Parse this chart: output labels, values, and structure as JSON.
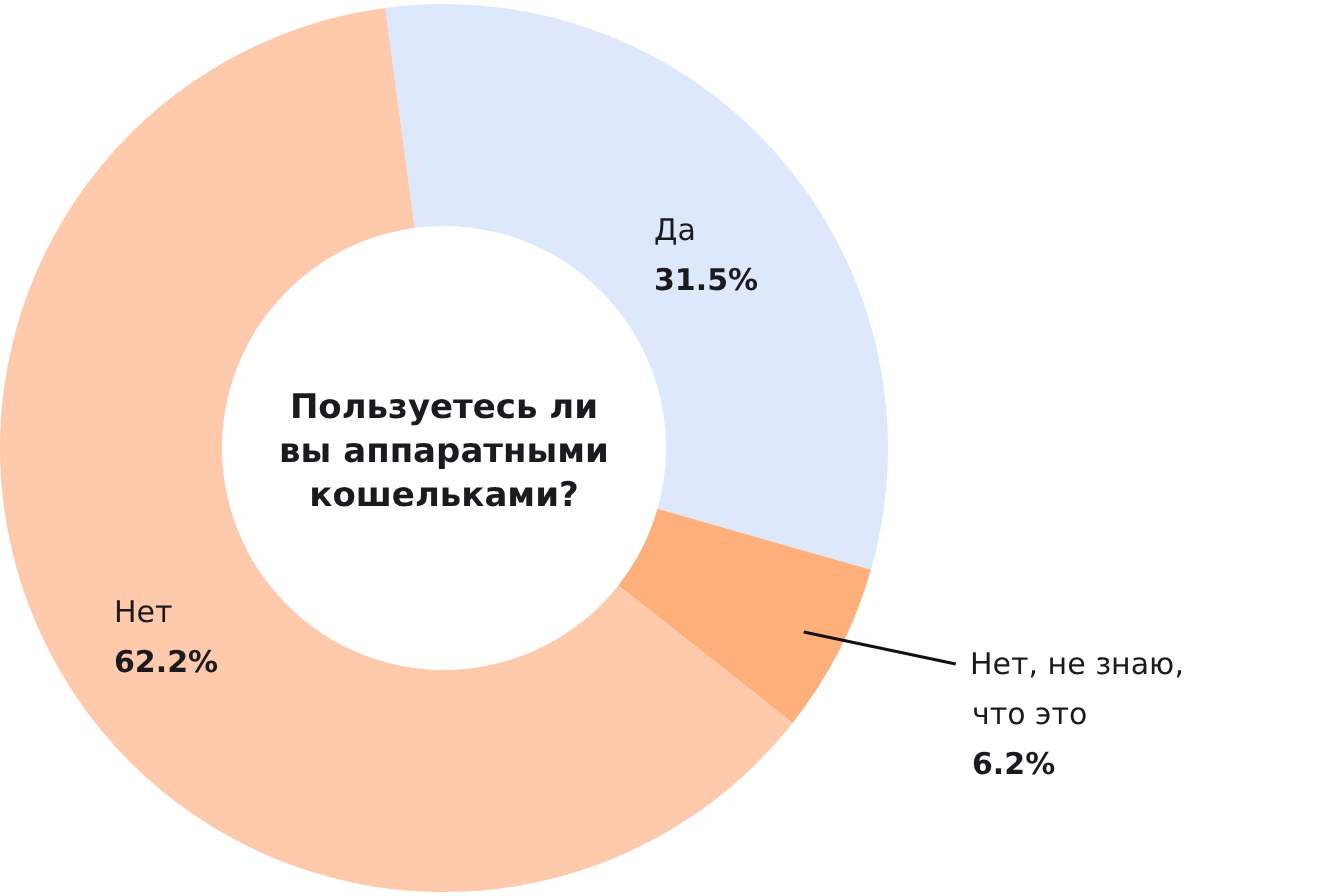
{
  "chart_data": {
    "type": "donut",
    "title": "Пользуетесь ли вы аппаратными кошельками?",
    "categories": [
      "Да",
      "Нет, не знаю, что это",
      "Нет"
    ],
    "values": [
      31.5,
      6.2,
      62.2
    ],
    "value_labels": [
      "31.5%",
      "6.2%",
      "62.2%"
    ],
    "colors": [
      "#dde8fc",
      "#ffb07a",
      "#ffc9ab"
    ]
  }
}
